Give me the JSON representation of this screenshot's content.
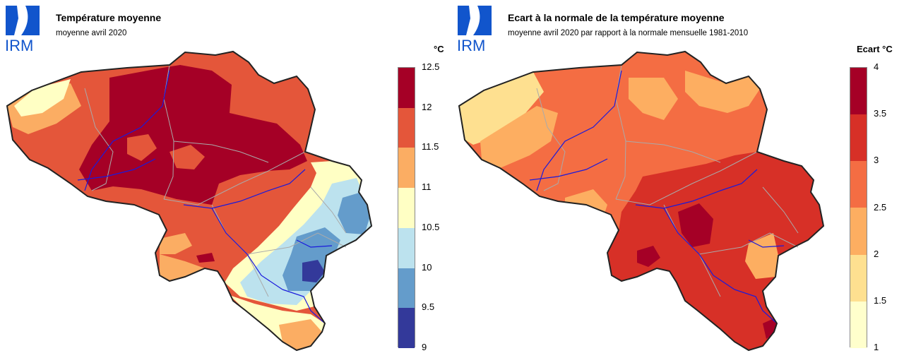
{
  "logo": {
    "icon": "irm-logo-icon",
    "text": "IRM",
    "color": "#1155cc"
  },
  "left": {
    "title": "Température moyenne",
    "subtitle": "moyenne avril 2020",
    "legend": {
      "unit": "°C",
      "ticks": [
        "12.5",
        "12",
        "11.5",
        "11",
        "10.5",
        "10",
        "9.5",
        "9"
      ],
      "colors": [
        "#a50026",
        "#e4563a",
        "#fbad63",
        "#ffffc4",
        "#bce2ee",
        "#649ccb",
        "#33399a"
      ]
    }
  },
  "right": {
    "title": "Ecart à la normale de la température moyenne",
    "subtitle": "moyenne avril 2020 par rapport à la normale mensuelle 1981-2010",
    "legend": {
      "unit": "Ecart  °C",
      "ticks": [
        "4",
        "3.5",
        "3",
        "2.5",
        "2",
        "1.5",
        "1"
      ],
      "colors": [
        "#a50026",
        "#d73027",
        "#f46d43",
        "#fdae61",
        "#fee090",
        "#ffffcc"
      ]
    }
  }
}
